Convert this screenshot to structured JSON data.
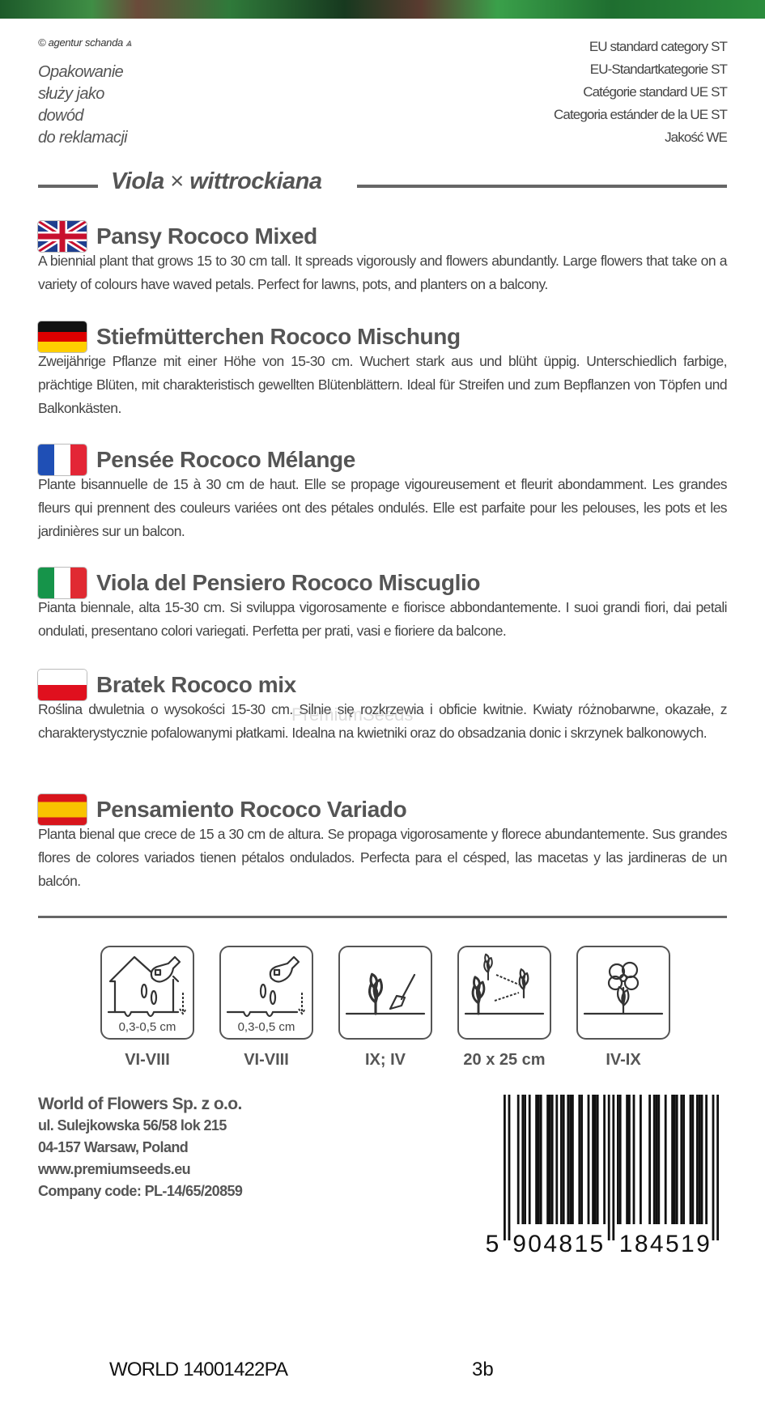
{
  "credit": "© agentur schanda",
  "complaint_note": [
    "Opakowanie",
    "służy jako",
    "dowód",
    "do reklamacji"
  ],
  "eu_category": [
    "EU standard category ST",
    "EU-Standartkategorie ST",
    "Catégorie standard UE ST",
    "Categoria estánder de la UE ST",
    "Jakość WE"
  ],
  "latin_name": {
    "genus": "Viola",
    "cross": "×",
    "species": "wittrockiana"
  },
  "sections": [
    {
      "lang": "en",
      "flag": "uk-flag",
      "title": "Pansy Rococo Mixed",
      "text": "A biennial plant that grows 15 to 30 cm tall. It spreads vigorously and flowers abundantly. Large flowers that take on a variety of colours have waved petals. Perfect for lawns, pots, and planters on a balcony."
    },
    {
      "lang": "de",
      "flag": "germany-flag",
      "title": "Stiefmütterchen Rococo Mischung",
      "text": "Zweijährige Pflanze mit einer Höhe von 15-30 cm. Wuchert stark aus und blüht üppig. Unterschiedlich farbige, prächtige Blüten, mit charakteristisch gewellten Blütenblättern. Ideal für Streifen und zum Bepflanzen von Töpfen und Balkonkästen."
    },
    {
      "lang": "fr",
      "flag": "france-flag",
      "title": "Pensée Rococo Mélange",
      "text": "Plante bisannuelle de 15 à 30 cm de haut. Elle se propage vigoureusement et fleurit abondamment. Les grandes fleurs qui prennent des couleurs variées ont des pétales ondulés. Elle est parfaite pour les pelouses, les pots et les jardinières sur un balcon."
    },
    {
      "lang": "it",
      "flag": "italy-flag",
      "title": "Viola del Pensiero Rococo Miscuglio",
      "text": "Pianta biennale, alta 15-30 cm. Si sviluppa vigorosamente e fiorisce abbondantemente. I suoi grandi fiori, dai petali ondulati, presentano colori variegati. Perfetta per prati, vasi e fioriere da balcone."
    },
    {
      "lang": "pl",
      "flag": "poland-flag",
      "title": "Bratek Rococo mix",
      "text": "Roślina dwuletnia o wysokości 15-30 cm. Silnie się rozkrzewia i obficie kwitnie. Kwiaty różnobarwne, okazałe, z charakterystycznie pofalowanymi płatkami. Idealna na kwietniki oraz do obsadzania donic i skrzynek balkonowych."
    },
    {
      "lang": "es",
      "flag": "spain-flag",
      "title": "Pensamiento Rococo Variado",
      "text": "Planta bienal que crece de 15 a 30 cm de altura. Se propaga vigorosamente y florece abundantemente. Sus grandes flores de colores variados tienen pétalos ondulados. Perfecta para el césped, las macetas y las jardineras de un balcón."
    }
  ],
  "watermark": "PremiumSeeds",
  "icons": [
    {
      "name": "sowing-greenhouse-icon",
      "depth": "0,3-0,5 cm",
      "label": "VI-VIII"
    },
    {
      "name": "sowing-outdoor-icon",
      "depth": "0,3-0,5 cm",
      "label": "VI-VIII"
    },
    {
      "name": "transplanting-icon",
      "label": "IX; IV"
    },
    {
      "name": "plant-spacing-icon",
      "label": "20 x 25 cm"
    },
    {
      "name": "flowering-icon",
      "label": "IV-IX"
    }
  ],
  "company": {
    "name": "World of Flowers Sp. z o.o.",
    "street": "ul. Sulejkowska 56/58 lok 215",
    "city": "04-157 Warsaw, Poland",
    "website": "www.premiumseeds.eu",
    "code": "Company code: PL-14/65/20859"
  },
  "barcode": {
    "digits": "5904815184519",
    "first": "5",
    "left": "904815",
    "right": "184519"
  },
  "product_code": "WORLD 14001422PA",
  "lot": "3b"
}
